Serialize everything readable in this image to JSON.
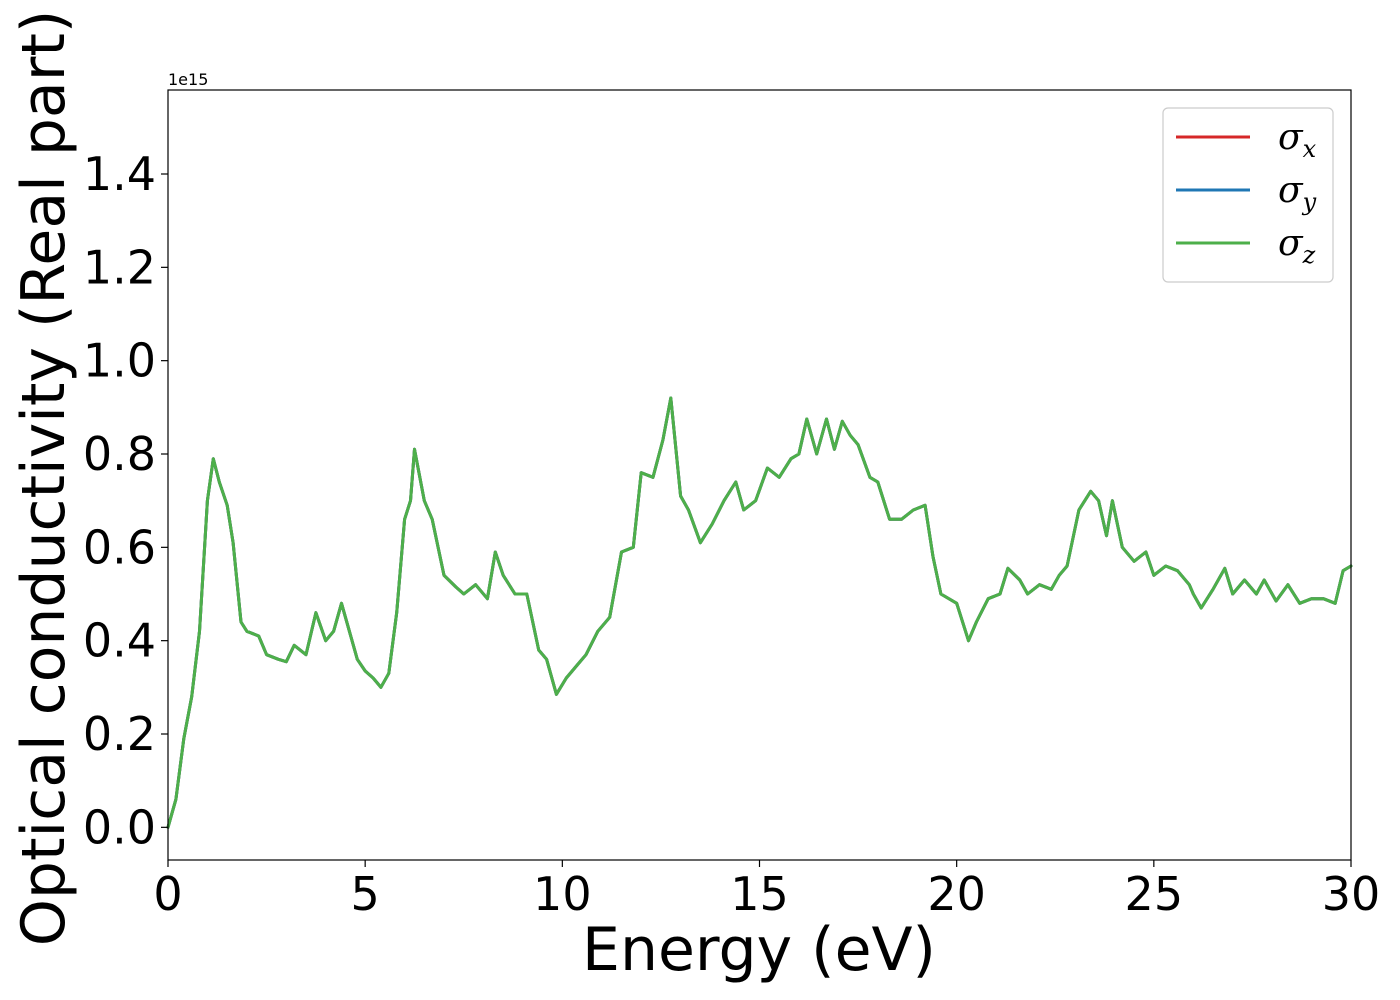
{
  "chart_data": {
    "type": "line",
    "title": "",
    "xlabel": "Energy (eV)",
    "ylabel": "Optical conductivity (Real part)",
    "y_offset_text": "1e15",
    "xlim": [
      0,
      30
    ],
    "ylim": [
      -0.07,
      1.58
    ],
    "xticks": [
      0,
      5,
      10,
      15,
      20,
      25,
      30
    ],
    "yticks": [
      0.0,
      0.2,
      0.4,
      0.6,
      0.8,
      1.0,
      1.2,
      1.4
    ],
    "grid": false,
    "legend_position": "top-right",
    "series": [
      {
        "name": "σx",
        "symbol": "σ",
        "subscript": "x",
        "color": "#d62728"
      },
      {
        "name": "σy",
        "symbol": "σ",
        "subscript": "y",
        "color": "#1f77b4"
      },
      {
        "name": "σz",
        "symbol": "σ",
        "subscript": "z",
        "color": "#4daf4a"
      }
    ],
    "x": [
      0,
      0.2,
      0.4,
      0.6,
      0.8,
      1.0,
      1.15,
      1.3,
      1.5,
      1.65,
      1.85,
      2.0,
      2.3,
      2.5,
      2.8,
      3.0,
      3.2,
      3.5,
      3.75,
      4.0,
      4.2,
      4.4,
      4.6,
      4.8,
      5.0,
      5.2,
      5.4,
      5.6,
      5.8,
      6.0,
      6.15,
      6.25,
      6.5,
      6.7,
      7.0,
      7.3,
      7.5,
      7.8,
      8.1,
      8.3,
      8.5,
      8.8,
      9.1,
      9.4,
      9.6,
      9.85,
      10.1,
      10.4,
      10.6,
      10.9,
      11.2,
      11.5,
      11.8,
      12.0,
      12.3,
      12.55,
      12.75,
      13.0,
      13.2,
      13.5,
      13.8,
      14.1,
      14.4,
      14.6,
      14.9,
      15.2,
      15.5,
      15.8,
      16.0,
      16.2,
      16.45,
      16.7,
      16.9,
      17.1,
      17.3,
      17.5,
      17.8,
      18.0,
      18.3,
      18.6,
      18.9,
      19.2,
      19.4,
      19.6,
      20.0,
      20.3,
      20.5,
      20.8,
      21.1,
      21.3,
      21.6,
      21.8,
      22.1,
      22.4,
      22.6,
      22.8,
      23.1,
      23.4,
      23.6,
      23.8,
      23.95,
      24.2,
      24.5,
      24.8,
      25.0,
      25.3,
      25.6,
      25.9,
      26.0,
      26.2,
      26.5,
      26.8,
      27.0,
      27.3,
      27.6,
      27.8,
      28.1,
      28.4,
      28.7,
      29.0,
      29.3,
      29.6,
      29.8,
      30.0
    ],
    "values": [
      0.0,
      0.06,
      0.19,
      0.28,
      0.42,
      0.7,
      0.79,
      0.74,
      0.69,
      0.61,
      0.44,
      0.42,
      0.41,
      0.37,
      0.36,
      0.355,
      0.39,
      0.37,
      0.46,
      0.4,
      0.42,
      0.48,
      0.42,
      0.36,
      0.335,
      0.32,
      0.3,
      0.33,
      0.46,
      0.66,
      0.7,
      0.81,
      0.7,
      0.66,
      0.54,
      0.515,
      0.5,
      0.52,
      0.49,
      0.59,
      0.54,
      0.5,
      0.5,
      0.38,
      0.36,
      0.285,
      0.32,
      0.35,
      0.37,
      0.42,
      0.45,
      0.59,
      0.6,
      0.76,
      0.75,
      0.83,
      0.92,
      0.71,
      0.68,
      0.61,
      0.65,
      0.7,
      0.74,
      0.68,
      0.7,
      0.77,
      0.75,
      0.79,
      0.8,
      0.875,
      0.8,
      0.875,
      0.81,
      0.87,
      0.84,
      0.82,
      0.75,
      0.74,
      0.66,
      0.66,
      0.68,
      0.69,
      0.58,
      0.5,
      0.48,
      0.4,
      0.44,
      0.49,
      0.5,
      0.555,
      0.53,
      0.5,
      0.52,
      0.51,
      0.54,
      0.56,
      0.68,
      0.72,
      0.7,
      0.625,
      0.7,
      0.6,
      0.57,
      0.59,
      0.54,
      0.56,
      0.55,
      0.52,
      0.5,
      0.47,
      0.51,
      0.555,
      0.5,
      0.53,
      0.5,
      0.53,
      0.485,
      0.52,
      0.48,
      0.49,
      0.49,
      0.48,
      0.55,
      0.56
    ]
  }
}
